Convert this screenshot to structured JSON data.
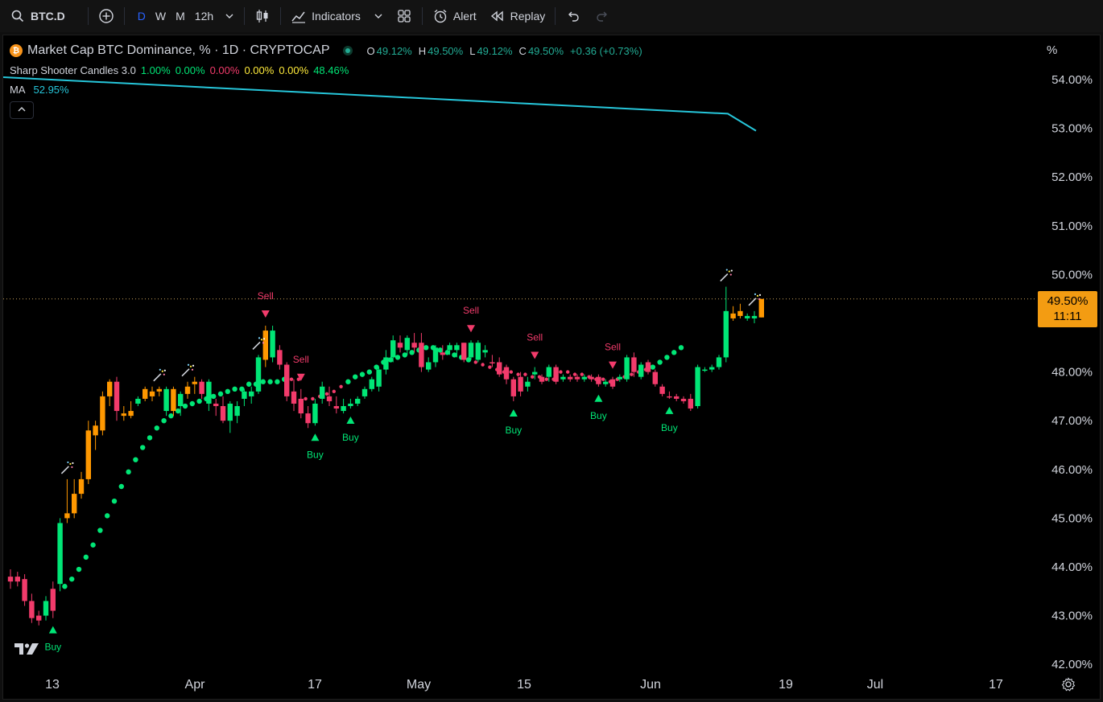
{
  "toolbar": {
    "symbol": "BTC.D",
    "intervals": [
      "D",
      "W",
      "M",
      "12h"
    ],
    "active_interval": "D",
    "indicators_label": "Indicators",
    "alert_label": "Alert",
    "replay_label": "Replay"
  },
  "legend": {
    "title": "Market Cap BTC Dominance, % · 1D · CRYPTOCAP",
    "ohlc": {
      "o_label": "O",
      "o": "49.12%",
      "h_label": "H",
      "h": "49.50%",
      "l_label": "L",
      "l": "49.12%",
      "c_label": "C",
      "c": "49.50%",
      "change": "+0.36 (+0.73%)"
    },
    "indicator_name": "Sharp Shooter Candles 3.0",
    "indicator_values": [
      "1.00%",
      "0.00%",
      "0.00%",
      "0.00%",
      "0.00%",
      "48.46%"
    ],
    "ma_label": "MA",
    "ma_value": "52.95%"
  },
  "price_axis": {
    "unit": "%",
    "ticks": [
      "54.00%",
      "53.00%",
      "52.00%",
      "51.00%",
      "50.00%",
      "48.00%",
      "47.00%",
      "46.00%",
      "45.00%",
      "44.00%",
      "43.00%",
      "42.00%"
    ],
    "last_price": "49.50%",
    "countdown": "11:11"
  },
  "time_axis": {
    "ticks": [
      "13",
      "Apr",
      "17",
      "May",
      "15",
      "Jun",
      "19",
      "Jul",
      "17"
    ]
  },
  "signal_labels": {
    "buy": "Buy",
    "sell": "Sell"
  },
  "colors": {
    "up": "#00e676",
    "down": "#f23b6b",
    "hot": "#ff9800",
    "ma": "#26c6da",
    "stop_up": "#00e676",
    "stop_down": "#f23b6b",
    "price_tag": "#f39c12"
  },
  "chart_data": {
    "type": "candlestick",
    "y_unit": "%",
    "ylim": [
      41.8,
      54.6
    ],
    "last_close": 49.5,
    "candles": [
      {
        "o": 43.8,
        "h": 43.95,
        "l": 43.55,
        "c": 43.7,
        "k": "d"
      },
      {
        "o": 43.8,
        "h": 43.9,
        "l": 43.6,
        "c": 43.7,
        "k": "d"
      },
      {
        "o": 43.75,
        "h": 43.85,
        "l": 43.2,
        "c": 43.3,
        "k": "d"
      },
      {
        "o": 43.3,
        "h": 43.45,
        "l": 42.85,
        "c": 42.95,
        "k": "d"
      },
      {
        "o": 43.0,
        "h": 43.1,
        "l": 42.8,
        "c": 42.9,
        "k": "d"
      },
      {
        "o": 43.0,
        "h": 43.4,
        "l": 42.9,
        "c": 43.3,
        "k": "u"
      },
      {
        "o": 43.55,
        "h": 43.7,
        "l": 42.95,
        "c": 43.1,
        "k": "d"
      },
      {
        "o": 43.65,
        "h": 45.0,
        "l": 43.5,
        "c": 44.9,
        "k": "u"
      },
      {
        "o": 45.0,
        "h": 45.8,
        "l": 44.9,
        "c": 45.1,
        "k": "h"
      },
      {
        "o": 45.1,
        "h": 45.8,
        "l": 45.0,
        "c": 45.5,
        "k": "h"
      },
      {
        "o": 45.5,
        "h": 45.95,
        "l": 45.4,
        "c": 45.8,
        "k": "h"
      },
      {
        "o": 45.8,
        "h": 47.0,
        "l": 45.7,
        "c": 46.8,
        "k": "h"
      },
      {
        "o": 46.9,
        "h": 47.0,
        "l": 46.4,
        "c": 46.7,
        "k": "h"
      },
      {
        "o": 46.8,
        "h": 47.6,
        "l": 46.7,
        "c": 47.5,
        "k": "h"
      },
      {
        "o": 47.5,
        "h": 47.85,
        "l": 47.3,
        "c": 47.8,
        "k": "h"
      },
      {
        "o": 47.8,
        "h": 47.9,
        "l": 47.0,
        "c": 47.2,
        "k": "d"
      },
      {
        "o": 47.1,
        "h": 47.3,
        "l": 47.0,
        "c": 47.15,
        "k": "h"
      },
      {
        "o": 47.1,
        "h": 47.4,
        "l": 47.05,
        "c": 47.2,
        "k": "h"
      },
      {
        "o": 47.35,
        "h": 47.5,
        "l": 47.3,
        "c": 47.45,
        "k": "u"
      },
      {
        "o": 47.45,
        "h": 47.7,
        "l": 47.4,
        "c": 47.65,
        "k": "h"
      },
      {
        "o": 47.5,
        "h": 47.7,
        "l": 47.4,
        "c": 47.6,
        "k": "h"
      },
      {
        "o": 47.6,
        "h": 47.7,
        "l": 47.5,
        "c": 47.65,
        "k": "h"
      },
      {
        "o": 47.2,
        "h": 47.7,
        "l": 47.1,
        "c": 47.65,
        "k": "u"
      },
      {
        "o": 47.2,
        "h": 47.7,
        "l": 47.1,
        "c": 47.65,
        "k": "h"
      },
      {
        "o": 47.3,
        "h": 47.6,
        "l": 47.1,
        "c": 47.55,
        "k": "u"
      },
      {
        "o": 47.55,
        "h": 47.8,
        "l": 47.45,
        "c": 47.7,
        "k": "h"
      },
      {
        "o": 47.75,
        "h": 47.9,
        "l": 47.55,
        "c": 47.8,
        "k": "h"
      },
      {
        "o": 47.8,
        "h": 47.85,
        "l": 47.45,
        "c": 47.55,
        "k": "d"
      },
      {
        "o": 47.35,
        "h": 47.85,
        "l": 47.2,
        "c": 47.8,
        "k": "u"
      },
      {
        "o": 47.3,
        "h": 47.45,
        "l": 47.1,
        "c": 47.35,
        "k": "d"
      },
      {
        "o": 47.3,
        "h": 47.5,
        "l": 46.95,
        "c": 47.0,
        "k": "d"
      },
      {
        "o": 47.0,
        "h": 47.4,
        "l": 46.75,
        "c": 47.35,
        "k": "u"
      },
      {
        "o": 47.1,
        "h": 47.4,
        "l": 46.95,
        "c": 47.3,
        "k": "u"
      },
      {
        "o": 47.45,
        "h": 47.65,
        "l": 47.3,
        "c": 47.6,
        "k": "u"
      },
      {
        "o": 47.5,
        "h": 47.7,
        "l": 47.35,
        "c": 47.6,
        "k": "u"
      },
      {
        "o": 47.6,
        "h": 48.35,
        "l": 47.55,
        "c": 48.3,
        "k": "u"
      },
      {
        "o": 48.25,
        "h": 48.95,
        "l": 48.1,
        "c": 48.85,
        "k": "h"
      },
      {
        "o": 48.3,
        "h": 48.95,
        "l": 48.2,
        "c": 48.85,
        "k": "u"
      },
      {
        "o": 48.45,
        "h": 48.55,
        "l": 48.05,
        "c": 48.15,
        "k": "d"
      },
      {
        "o": 48.15,
        "h": 48.2,
        "l": 47.4,
        "c": 47.5,
        "k": "d"
      },
      {
        "o": 47.6,
        "h": 47.85,
        "l": 47.2,
        "c": 47.35,
        "k": "d"
      },
      {
        "o": 47.45,
        "h": 47.65,
        "l": 47.05,
        "c": 47.15,
        "k": "d"
      },
      {
        "o": 47.15,
        "h": 47.3,
        "l": 46.85,
        "c": 46.95,
        "k": "d"
      },
      {
        "o": 46.95,
        "h": 47.45,
        "l": 46.9,
        "c": 47.35,
        "k": "u"
      },
      {
        "o": 47.45,
        "h": 47.8,
        "l": 47.35,
        "c": 47.7,
        "k": "u"
      },
      {
        "o": 47.5,
        "h": 47.7,
        "l": 47.3,
        "c": 47.4,
        "k": "d"
      },
      {
        "o": 47.25,
        "h": 47.5,
        "l": 47.15,
        "c": 47.3,
        "k": "d"
      },
      {
        "o": 47.2,
        "h": 47.45,
        "l": 47.15,
        "c": 47.3,
        "k": "u"
      },
      {
        "o": 47.3,
        "h": 47.45,
        "l": 47.25,
        "c": 47.35,
        "k": "u"
      },
      {
        "o": 47.35,
        "h": 47.5,
        "l": 47.3,
        "c": 47.45,
        "k": "u"
      },
      {
        "o": 47.5,
        "h": 47.7,
        "l": 47.45,
        "c": 47.65,
        "k": "u"
      },
      {
        "o": 47.65,
        "h": 47.9,
        "l": 47.6,
        "c": 47.85,
        "k": "u"
      },
      {
        "o": 47.7,
        "h": 48.1,
        "l": 47.6,
        "c": 48.05,
        "k": "u"
      },
      {
        "o": 48.05,
        "h": 48.45,
        "l": 47.95,
        "c": 48.3,
        "k": "u"
      },
      {
        "o": 48.3,
        "h": 48.75,
        "l": 48.2,
        "c": 48.65,
        "k": "u"
      },
      {
        "o": 48.6,
        "h": 48.75,
        "l": 48.4,
        "c": 48.5,
        "k": "d"
      },
      {
        "o": 48.45,
        "h": 48.75,
        "l": 48.35,
        "c": 48.7,
        "k": "u"
      },
      {
        "o": 48.6,
        "h": 48.8,
        "l": 48.4,
        "c": 48.5,
        "k": "d"
      },
      {
        "o": 48.6,
        "h": 48.8,
        "l": 48.0,
        "c": 48.1,
        "k": "d"
      },
      {
        "o": 48.05,
        "h": 48.3,
        "l": 48.0,
        "c": 48.2,
        "k": "u"
      },
      {
        "o": 48.2,
        "h": 48.55,
        "l": 48.1,
        "c": 48.5,
        "k": "u"
      },
      {
        "o": 48.4,
        "h": 48.55,
        "l": 48.25,
        "c": 48.35,
        "k": "d"
      },
      {
        "o": 48.45,
        "h": 48.6,
        "l": 48.35,
        "c": 48.55,
        "k": "u"
      },
      {
        "o": 48.45,
        "h": 48.6,
        "l": 48.3,
        "c": 48.55,
        "k": "u"
      },
      {
        "o": 48.6,
        "h": 48.6,
        "l": 48.2,
        "c": 48.25,
        "k": "d"
      },
      {
        "o": 48.3,
        "h": 48.65,
        "l": 48.25,
        "c": 48.6,
        "k": "u"
      },
      {
        "o": 48.25,
        "h": 48.65,
        "l": 48.2,
        "c": 48.6,
        "k": "u"
      },
      {
        "o": 48.4,
        "h": 48.55,
        "l": 48.3,
        "c": 48.45,
        "k": "u"
      },
      {
        "o": 48.2,
        "h": 48.35,
        "l": 48.1,
        "c": 48.2,
        "k": "d"
      },
      {
        "o": 48.2,
        "h": 48.3,
        "l": 47.9,
        "c": 47.95,
        "k": "d"
      },
      {
        "o": 48.1,
        "h": 48.15,
        "l": 47.75,
        "c": 47.85,
        "k": "d"
      },
      {
        "o": 47.85,
        "h": 47.9,
        "l": 47.4,
        "c": 47.5,
        "k": "d"
      },
      {
        "o": 47.9,
        "h": 48.0,
        "l": 47.5,
        "c": 47.6,
        "k": "d"
      },
      {
        "o": 47.7,
        "h": 47.9,
        "l": 47.6,
        "c": 47.8,
        "k": "u"
      },
      {
        "o": 47.95,
        "h": 48.1,
        "l": 47.85,
        "c": 48.0,
        "k": "u"
      },
      {
        "o": 47.8,
        "h": 47.95,
        "l": 47.75,
        "c": 47.9,
        "k": "d"
      },
      {
        "o": 47.9,
        "h": 48.15,
        "l": 47.8,
        "c": 48.1,
        "k": "u"
      },
      {
        "o": 48.1,
        "h": 48.15,
        "l": 47.75,
        "c": 47.8,
        "k": "d"
      },
      {
        "o": 47.85,
        "h": 47.95,
        "l": 47.8,
        "c": 47.9,
        "k": "u"
      },
      {
        "o": 47.85,
        "h": 47.95,
        "l": 47.8,
        "c": 47.9,
        "k": "d"
      },
      {
        "o": 47.9,
        "h": 47.95,
        "l": 47.8,
        "c": 47.85,
        "k": "d"
      },
      {
        "o": 47.85,
        "h": 47.95,
        "l": 47.8,
        "c": 47.9,
        "k": "u"
      },
      {
        "o": 47.9,
        "h": 47.95,
        "l": 47.8,
        "c": 47.85,
        "k": "d"
      },
      {
        "o": 47.9,
        "h": 47.95,
        "l": 47.7,
        "c": 47.75,
        "k": "d"
      },
      {
        "o": 47.75,
        "h": 47.85,
        "l": 47.7,
        "c": 47.8,
        "k": "u"
      },
      {
        "o": 47.85,
        "h": 47.9,
        "l": 47.65,
        "c": 47.7,
        "k": "d"
      },
      {
        "o": 47.85,
        "h": 47.95,
        "l": 47.8,
        "c": 47.9,
        "k": "u"
      },
      {
        "o": 47.85,
        "h": 48.35,
        "l": 47.8,
        "c": 48.3,
        "k": "u"
      },
      {
        "o": 48.3,
        "h": 48.4,
        "l": 47.9,
        "c": 48.0,
        "k": "d"
      },
      {
        "o": 47.9,
        "h": 48.2,
        "l": 47.85,
        "c": 48.15,
        "k": "u"
      },
      {
        "o": 48.2,
        "h": 48.25,
        "l": 47.95,
        "c": 48.0,
        "k": "d"
      },
      {
        "o": 48.0,
        "h": 48.05,
        "l": 47.7,
        "c": 47.75,
        "k": "d"
      },
      {
        "o": 47.7,
        "h": 47.75,
        "l": 47.5,
        "c": 47.55,
        "k": "d"
      },
      {
        "o": 47.5,
        "h": 47.6,
        "l": 47.45,
        "c": 47.5,
        "k": "d"
      },
      {
        "o": 47.5,
        "h": 47.55,
        "l": 47.4,
        "c": 47.45,
        "k": "d"
      },
      {
        "o": 47.45,
        "h": 47.5,
        "l": 47.35,
        "c": 47.4,
        "k": "d"
      },
      {
        "o": 47.45,
        "h": 47.55,
        "l": 47.2,
        "c": 47.25,
        "k": "d"
      },
      {
        "o": 47.3,
        "h": 48.15,
        "l": 47.25,
        "c": 48.1,
        "k": "u"
      },
      {
        "o": 48.05,
        "h": 48.1,
        "l": 48.0,
        "c": 48.05,
        "k": "u"
      },
      {
        "o": 48.05,
        "h": 48.15,
        "l": 48.0,
        "c": 48.1,
        "k": "u"
      },
      {
        "o": 48.1,
        "h": 48.35,
        "l": 48.05,
        "c": 48.3,
        "k": "u"
      },
      {
        "o": 48.3,
        "h": 49.75,
        "l": 48.2,
        "c": 49.25,
        "k": "u"
      },
      {
        "o": 49.2,
        "h": 49.35,
        "l": 49.05,
        "c": 49.1,
        "k": "h"
      },
      {
        "o": 49.25,
        "h": 49.4,
        "l": 49.1,
        "c": 49.15,
        "k": "h"
      },
      {
        "o": 49.1,
        "h": 49.2,
        "l": 49.05,
        "c": 49.15,
        "k": "u"
      },
      {
        "o": 49.15,
        "h": 49.25,
        "l": 49.0,
        "c": 49.1,
        "k": "u"
      },
      {
        "o": 49.12,
        "h": 49.5,
        "l": 49.12,
        "c": 49.5,
        "k": "h"
      }
    ],
    "trailing_stop": [
      43.6,
      43.75,
      43.95,
      44.2,
      44.45,
      44.75,
      45.05,
      45.35,
      45.65,
      45.95,
      46.2,
      46.45,
      46.65,
      46.85,
      47.0,
      47.1,
      47.2,
      47.3,
      47.35,
      47.4,
      47.45,
      47.5,
      47.55,
      47.6,
      47.65,
      47.65,
      47.75,
      47.75,
      47.8,
      47.8,
      47.8,
      47.85,
      47.85,
      47.85,
      47.45,
      47.45,
      47.5,
      47.55,
      47.6,
      47.7,
      47.8,
      47.9,
      47.95,
      48.0,
      48.1,
      48.2,
      48.25,
      48.3,
      48.35,
      48.4,
      48.45,
      48.5,
      48.5,
      48.45,
      48.4,
      48.35,
      48.3,
      48.25,
      48.2,
      48.15,
      48.1,
      48.05,
      48.0,
      48.0,
      47.95,
      47.95,
      47.9,
      47.9,
      47.85,
      47.85,
      48.0,
      48.0,
      47.95,
      47.95,
      47.9,
      47.85,
      47.85,
      47.8,
      47.85,
      47.9,
      47.95,
      48.0,
      48.05,
      48.1,
      48.2,
      48.3,
      48.4,
      48.5
    ],
    "stop_start_index": 6,
    "stop_segments": [
      {
        "from": 6,
        "to": 31,
        "dir": "up"
      },
      {
        "from": 32,
        "to": 39,
        "dir": "down"
      },
      {
        "from": 40,
        "to": 57,
        "dir": "up"
      },
      {
        "from": 58,
        "to": 75,
        "dir": "down"
      },
      {
        "from": 76,
        "to": 82,
        "dir": "down"
      },
      {
        "from": 83,
        "to": 93,
        "dir": "up"
      }
    ],
    "ma_line": [
      54.05,
      53.7,
      53.3,
      52.95
    ],
    "signals": [
      {
        "i": 6,
        "type": "buy"
      },
      {
        "i": 36,
        "type": "sell"
      },
      {
        "i": 41,
        "type": "sell"
      },
      {
        "i": 43,
        "type": "buy"
      },
      {
        "i": 48,
        "type": "buy"
      },
      {
        "i": 65,
        "type": "sell"
      },
      {
        "i": 71,
        "type": "buy"
      },
      {
        "i": 74,
        "type": "sell"
      },
      {
        "i": 83,
        "type": "buy"
      },
      {
        "i": 85,
        "type": "sell"
      },
      {
        "i": 93,
        "type": "buy"
      }
    ],
    "hot_marks": [
      8,
      21,
      25,
      35,
      101,
      105
    ]
  }
}
